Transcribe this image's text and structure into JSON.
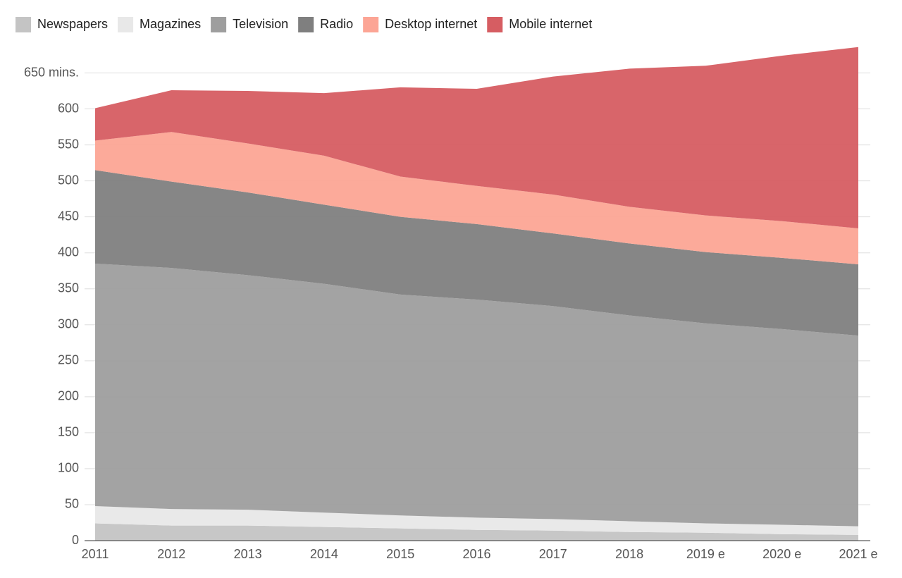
{
  "chart_data": {
    "type": "stacked_area",
    "categories": [
      "2011",
      "2012",
      "2013",
      "2014",
      "2015",
      "2016",
      "2017",
      "2018",
      "2019 e",
      "2020 e",
      "2021 e"
    ],
    "series": [
      {
        "name": "Newspapers",
        "color": "#c4c4c4",
        "values": [
          24,
          21,
          21,
          19,
          17,
          15,
          14,
          12,
          11,
          9,
          8
        ]
      },
      {
        "name": "Magazines",
        "color": "#e8e8e8",
        "values": [
          24,
          23,
          22,
          20,
          18,
          17,
          16,
          15,
          13,
          13,
          12
        ]
      },
      {
        "name": "Television",
        "color": "#9e9e9e",
        "values": [
          337,
          335,
          326,
          318,
          307,
          303,
          296,
          286,
          278,
          272,
          265
        ]
      },
      {
        "name": "Radio",
        "color": "#7f7f7f",
        "values": [
          130,
          120,
          115,
          110,
          108,
          105,
          101,
          100,
          99,
          99,
          99
        ]
      },
      {
        "name": "Desktop internet",
        "color": "#fca595",
        "values": [
          41,
          69,
          68,
          68,
          56,
          53,
          54,
          51,
          51,
          51,
          50
        ]
      },
      {
        "name": "Mobile internet",
        "color": "#d65d62",
        "values": [
          45,
          58,
          73,
          87,
          124,
          135,
          164,
          192,
          208,
          230,
          252
        ]
      }
    ],
    "ylim": [
      0,
      675
    ],
    "yticks": [
      0,
      50,
      100,
      150,
      200,
      250,
      300,
      350,
      400,
      450,
      500,
      550,
      600,
      {
        "value": 650,
        "label": "650 mins."
      }
    ],
    "grid": true
  }
}
